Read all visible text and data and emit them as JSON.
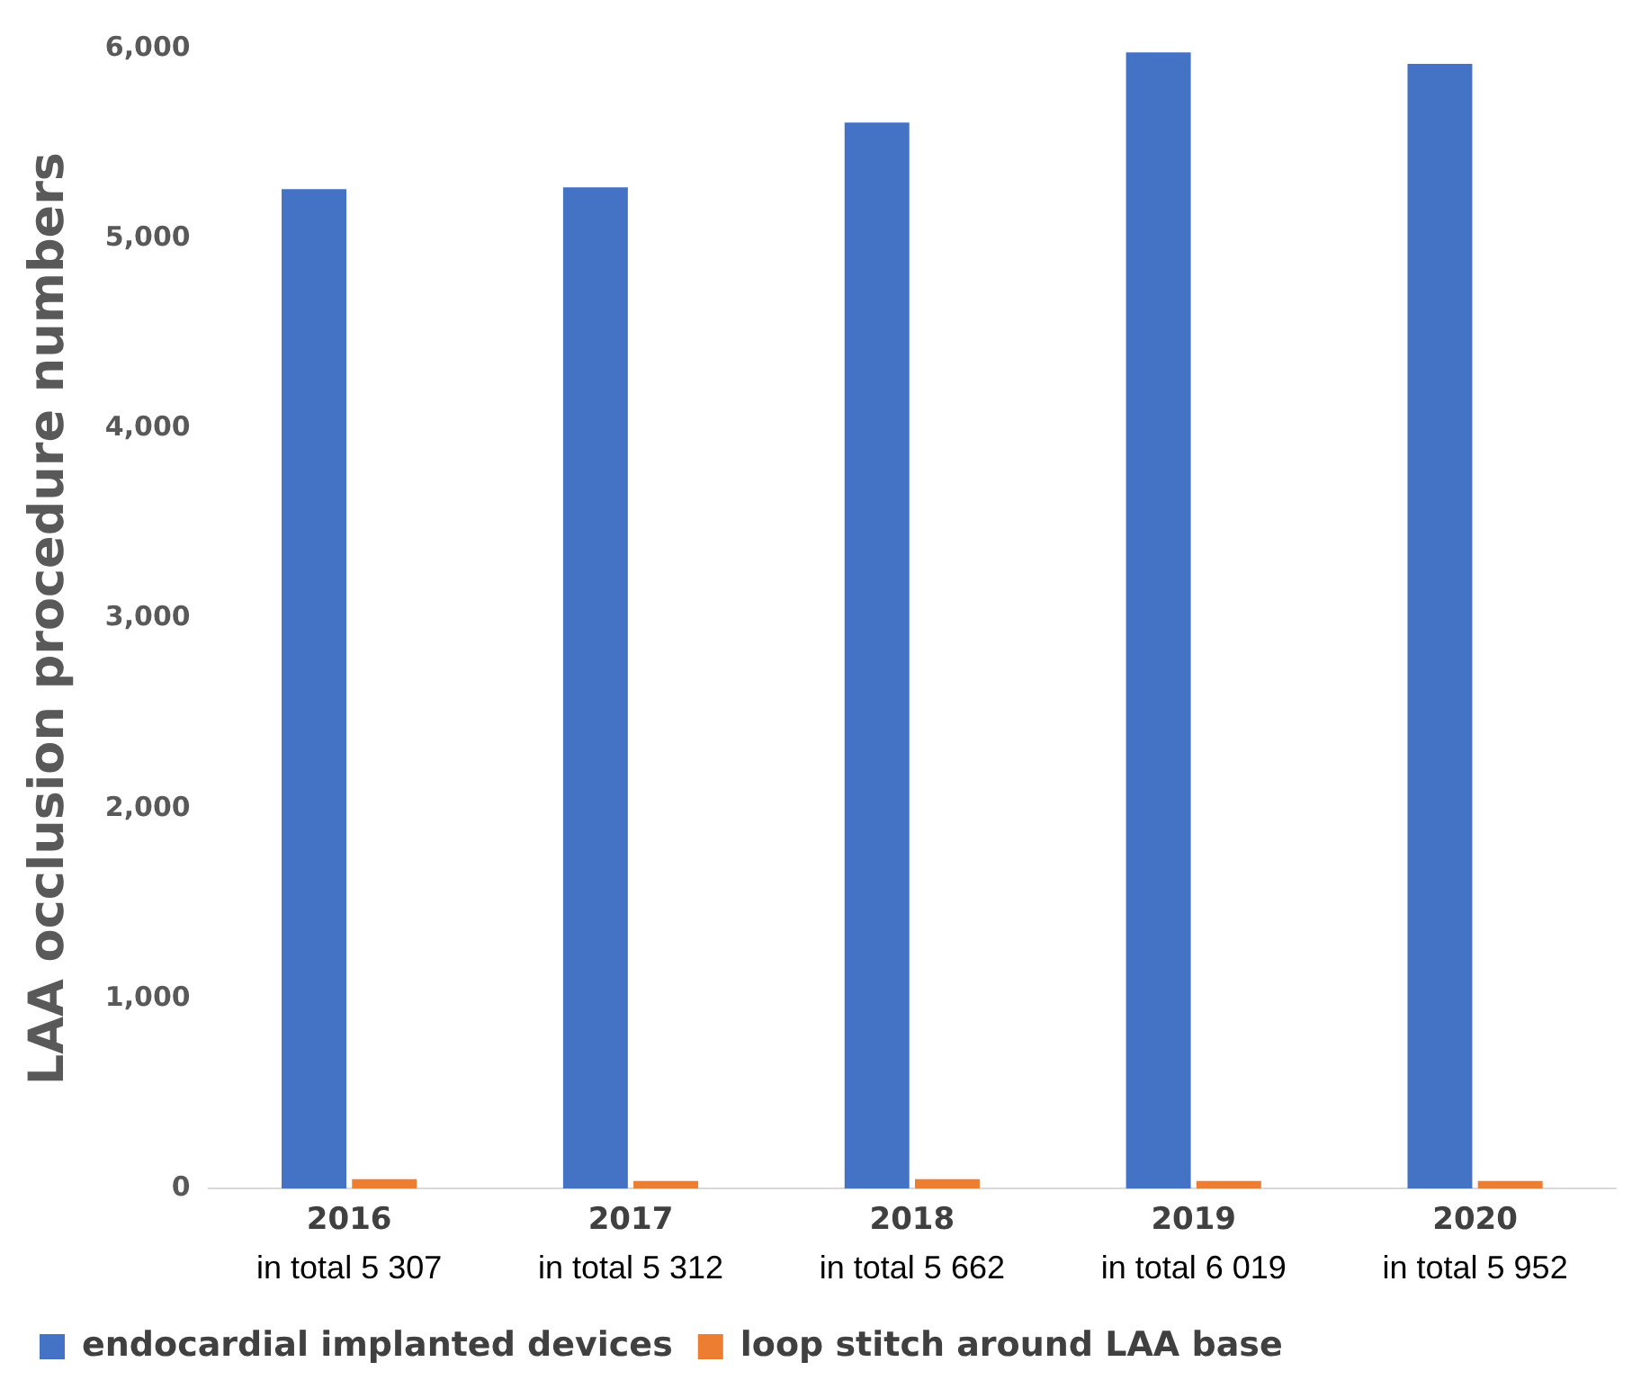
{
  "chart_data": {
    "type": "bar",
    "ylabel": "LAA occlusion procedure numbers",
    "categories": [
      "2016",
      "2017",
      "2018",
      "2019",
      "2020"
    ],
    "series": [
      {
        "name": "endocardial implanted devices",
        "color": "#4472c4",
        "values": [
          5260,
          5270,
          5610,
          5980,
          5920
        ]
      },
      {
        "name": "loop stitch around LAA base",
        "color": "#ed7d31",
        "values": [
          50,
          40,
          50,
          40,
          40
        ]
      }
    ],
    "ylim": [
      0,
      6000
    ],
    "yticks": [
      {
        "value": 0,
        "label": "0"
      },
      {
        "value": 1000,
        "label": "1,000"
      },
      {
        "value": 2000,
        "label": "2,000"
      },
      {
        "value": 3000,
        "label": "3,000"
      },
      {
        "value": 4000,
        "label": "4,000"
      },
      {
        "value": 5000,
        "label": "5,000"
      },
      {
        "value": 6000,
        "label": "6,000"
      }
    ],
    "annotations": [
      "in total 5 307",
      "in total 5 312",
      "in total 5 662",
      "in total 6 019",
      "in total 5 952"
    ],
    "grid": false,
    "legend": "bottom"
  }
}
